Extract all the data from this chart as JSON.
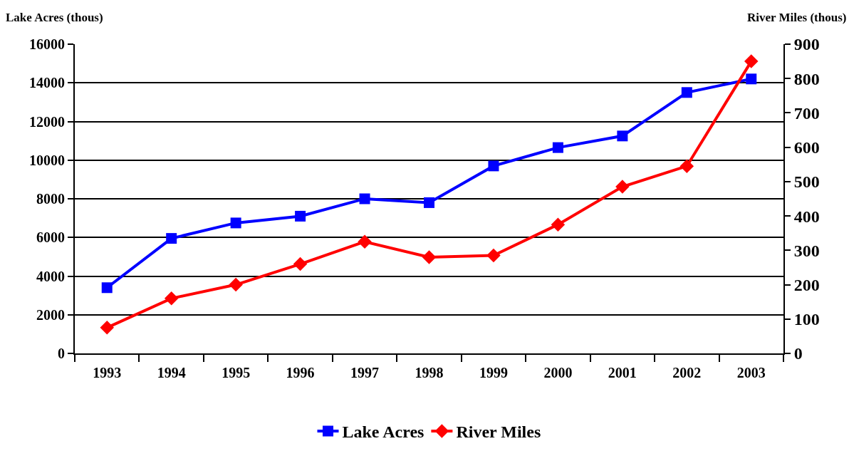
{
  "chart_data": {
    "type": "line",
    "ylabel": "Lake Acres (thous)",
    "y2label": "River Miles (thous)",
    "categories": [
      "1993",
      "1994",
      "1995",
      "1996",
      "1997",
      "1998",
      "1999",
      "2000",
      "2001",
      "2002",
      "2003"
    ],
    "series": [
      {
        "name": "Lake Acres",
        "color": "#0000ff",
        "marker": "square",
        "values": [
          3400,
          5950,
          6750,
          7100,
          8000,
          7800,
          9700,
          10650,
          11250,
          13500,
          14200
        ]
      },
      {
        "name": "River Miles",
        "color": "#ff0000",
        "marker": "diamond",
        "axis": "y2",
        "values": [
          75,
          160,
          200,
          260,
          325,
          280,
          285,
          375,
          485,
          545,
          850
        ]
      }
    ],
    "ylim": [
      0,
      16000
    ],
    "yticks": [
      0,
      2000,
      4000,
      6000,
      8000,
      10000,
      12000,
      14000,
      16000
    ],
    "y2lim": [
      0,
      900
    ],
    "y2ticks": [
      0,
      100,
      200,
      300,
      400,
      500,
      600,
      700,
      800,
      900
    ],
    "grid": "y",
    "legend": "bottom",
    "line_style": "solid"
  }
}
